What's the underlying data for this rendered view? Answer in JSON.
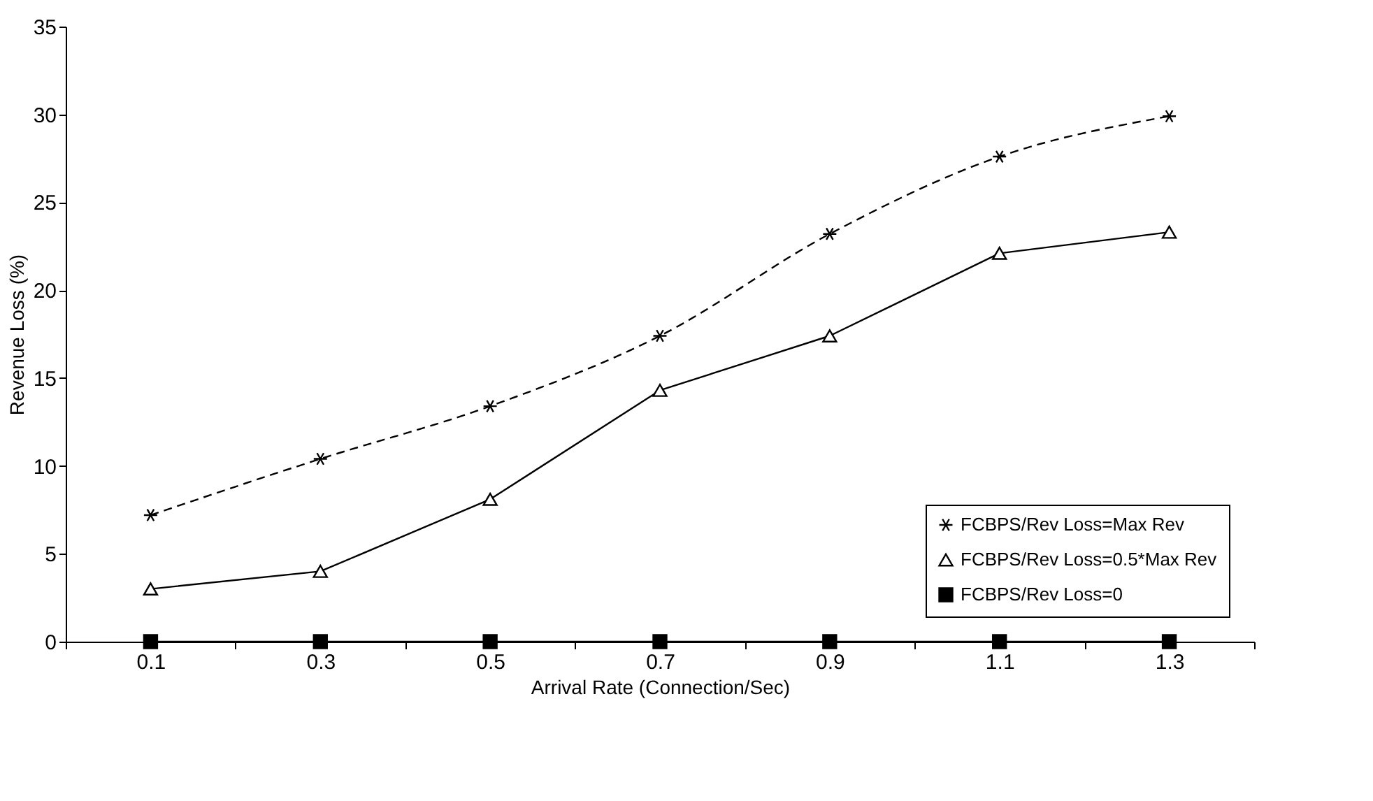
{
  "chart_data": {
    "type": "line",
    "xlabel": "Arrival Rate (Connection/Sec)",
    "ylabel": "Revenue Loss (%)",
    "categories": [
      "0.1",
      "0.3",
      "0.5",
      "0.7",
      "0.9",
      "1.1",
      "1.3"
    ],
    "series": [
      {
        "name": "FCBPS/Rev Loss=Max Rev",
        "color": "#000000",
        "marker": "cross",
        "line_style": "dashed",
        "values": [
          7.2,
          10.4,
          13.4,
          17.4,
          23.2,
          27.6,
          29.9
        ]
      },
      {
        "name": "FCBPS/Rev Loss=0.5*Max Rev",
        "color": "#000000",
        "marker": "triangle",
        "line_style": "solid",
        "values": [
          3.0,
          4.0,
          8.1,
          14.3,
          17.4,
          22.1,
          23.3
        ]
      },
      {
        "name": "FCBPS/Rev Loss=0",
        "color": "#000000",
        "marker": "square",
        "line_style": "solid",
        "values": [
          0,
          0,
          0,
          0,
          0,
          0,
          0
        ]
      }
    ],
    "ylim": [
      0,
      35
    ],
    "yticks": [
      0,
      5,
      10,
      15,
      20,
      25,
      30,
      35
    ],
    "grid": false,
    "legend": "bottom right"
  }
}
